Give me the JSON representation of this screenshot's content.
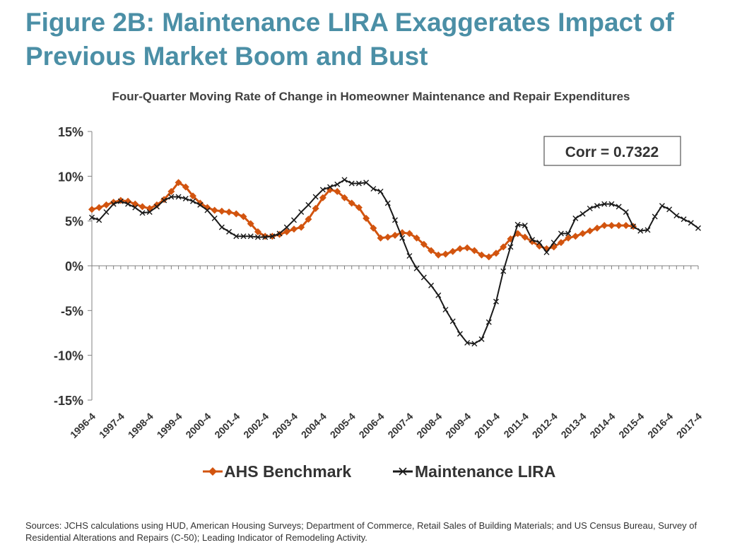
{
  "title": "Figure 2B: Maintenance LIRA Exaggerates Impact of Previous Market Boom and Bust",
  "subtitle": "Four-Quarter Moving Rate of Change in Homeowner Maintenance and Repair Expenditures",
  "annotation": "Corr = 0.7322",
  "sources": "Sources: JCHS calculations using HUD, American Housing Surveys; Department of Commerce, Retail Sales of Building Materials; and US Census Bureau, Survey of Residential Alterations and Repairs (C-50); Leading Indicator of Remodeling Activity.",
  "chart_data": {
    "type": "line",
    "title": "Four-Quarter Moving Rate of Change in Homeowner Maintenance and Repair Expenditures",
    "xlabel": "",
    "ylabel": "",
    "ylim": [
      -15,
      15
    ],
    "yticks": [
      15,
      10,
      5,
      0,
      -5,
      -10,
      -15
    ],
    "ytick_labels": [
      "15%",
      "10%",
      "5%",
      "0%",
      "-5%",
      "-10%",
      "-15%"
    ],
    "x_start": "1996-4",
    "x_end": "2017-4",
    "xtick_labels": [
      "1996-4",
      "1997-4",
      "1998-4",
      "1999-4",
      "2000-4",
      "2001-4",
      "2002-4",
      "2003-4",
      "2004-4",
      "2005-4",
      "2006-4",
      "2007-4",
      "2008-4",
      "2009-4",
      "2010-4",
      "2011-4",
      "2012-4",
      "2013-4",
      "2014-4",
      "2015-4",
      "2016-4",
      "2017-4"
    ],
    "grid": false,
    "legend": "bottom",
    "series": [
      {
        "name": "AHS Benchmark",
        "color": "#d2540f",
        "marker": "diamond",
        "x_start": "1996-4",
        "values": [
          6.3,
          6.5,
          6.8,
          7.1,
          7.3,
          7.2,
          6.9,
          6.6,
          6.4,
          6.8,
          7.4,
          8.3,
          9.3,
          8.8,
          7.8,
          7.0,
          6.5,
          6.2,
          6.1,
          6.0,
          5.8,
          5.5,
          4.7,
          3.8,
          3.3,
          3.3,
          3.5,
          3.8,
          4.1,
          4.3,
          5.2,
          6.4,
          7.6,
          8.5,
          8.3,
          7.6,
          7.0,
          6.5,
          5.3,
          4.2,
          3.1,
          3.2,
          3.4,
          3.7,
          3.6,
          3.1,
          2.4,
          1.7,
          1.2,
          1.3,
          1.6,
          1.9,
          2.0,
          1.7,
          1.2,
          1.0,
          1.4,
          2.1,
          3.0,
          3.6,
          3.2,
          2.7,
          2.2,
          1.9,
          2.1,
          2.6,
          3.1,
          3.3,
          3.6,
          3.9,
          4.2,
          4.5,
          4.5,
          4.5,
          4.5,
          4.4
        ]
      },
      {
        "name": "Maintenance LIRA",
        "color": "#1a1a1a",
        "marker": "x",
        "x_start": "1996-4",
        "values": [
          5.4,
          5.1,
          6.0,
          6.9,
          7.2,
          6.9,
          6.5,
          5.9,
          6.0,
          6.6,
          7.3,
          7.7,
          7.7,
          7.5,
          7.2,
          6.8,
          6.2,
          5.3,
          4.3,
          3.8,
          3.3,
          3.3,
          3.3,
          3.2,
          3.2,
          3.3,
          3.6,
          4.3,
          5.1,
          6.0,
          6.8,
          7.7,
          8.5,
          8.8,
          9.1,
          9.6,
          9.2,
          9.2,
          9.3,
          8.6,
          8.3,
          7.0,
          5.1,
          3.1,
          1.1,
          -0.3,
          -1.3,
          -2.2,
          -3.3,
          -4.9,
          -6.2,
          -7.6,
          -8.6,
          -8.7,
          -8.2,
          -6.3,
          -4.0,
          -0.6,
          2.1,
          4.6,
          4.5,
          2.9,
          2.6,
          1.5,
          2.6,
          3.6,
          3.6,
          5.3,
          5.8,
          6.4,
          6.7,
          6.9,
          6.9,
          6.6,
          6.0,
          4.4,
          3.9,
          4.0,
          5.5,
          6.7,
          6.3,
          5.6,
          5.2,
          4.8,
          4.2
        ]
      }
    ]
  }
}
